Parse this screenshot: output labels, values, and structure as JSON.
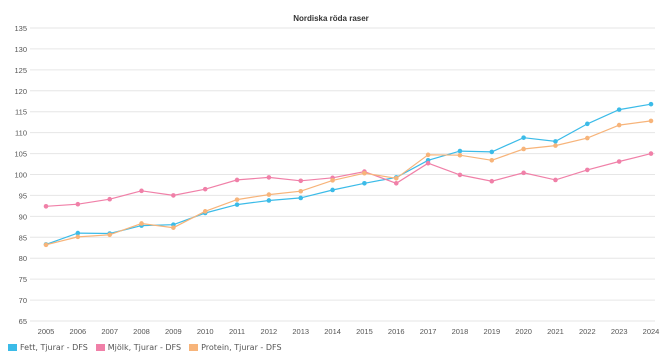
{
  "chart_data": {
    "type": "line",
    "title": "Nordiska röda raser",
    "xlabel": "",
    "ylabel": "",
    "x": [
      "2005",
      "2006",
      "2007",
      "2008",
      "2009",
      "2010",
      "2011",
      "2012",
      "2013",
      "2014",
      "2015",
      "2016",
      "2017",
      "2018",
      "2019",
      "2020",
      "2021",
      "2022",
      "2023",
      "2024"
    ],
    "ylim": [
      65,
      135
    ],
    "yticks": [
      65,
      70,
      75,
      80,
      85,
      90,
      95,
      100,
      105,
      110,
      115,
      120,
      125,
      130,
      135
    ],
    "grid": true,
    "legend_position": "bottom-left",
    "series": [
      {
        "name": "Fett, Tjurar - DFS",
        "color": "#3bbbe8",
        "values": [
          83.3,
          86.0,
          85.9,
          87.8,
          88.0,
          90.8,
          92.8,
          93.8,
          94.4,
          96.3,
          97.9,
          99.3,
          103.4,
          105.6,
          105.4,
          108.8,
          107.9,
          112.1,
          115.5,
          116.8
        ]
      },
      {
        "name": "Mjölk, Tjurar - DFS",
        "color": "#f080a8",
        "values": [
          92.4,
          92.9,
          94.1,
          96.1,
          95.0,
          96.5,
          98.7,
          99.3,
          98.5,
          99.2,
          100.7,
          97.9,
          102.7,
          99.9,
          98.4,
          100.4,
          98.7,
          101.1,
          103.1,
          105.0
        ]
      },
      {
        "name": "Protein, Tjurar - DFS",
        "color": "#f7b47a",
        "values": [
          83.2,
          85.1,
          85.6,
          88.3,
          87.3,
          91.2,
          94.0,
          95.2,
          96.0,
          98.6,
          100.3,
          99.1,
          104.7,
          104.6,
          103.4,
          106.1,
          106.9,
          108.7,
          111.8,
          112.8
        ]
      }
    ]
  }
}
